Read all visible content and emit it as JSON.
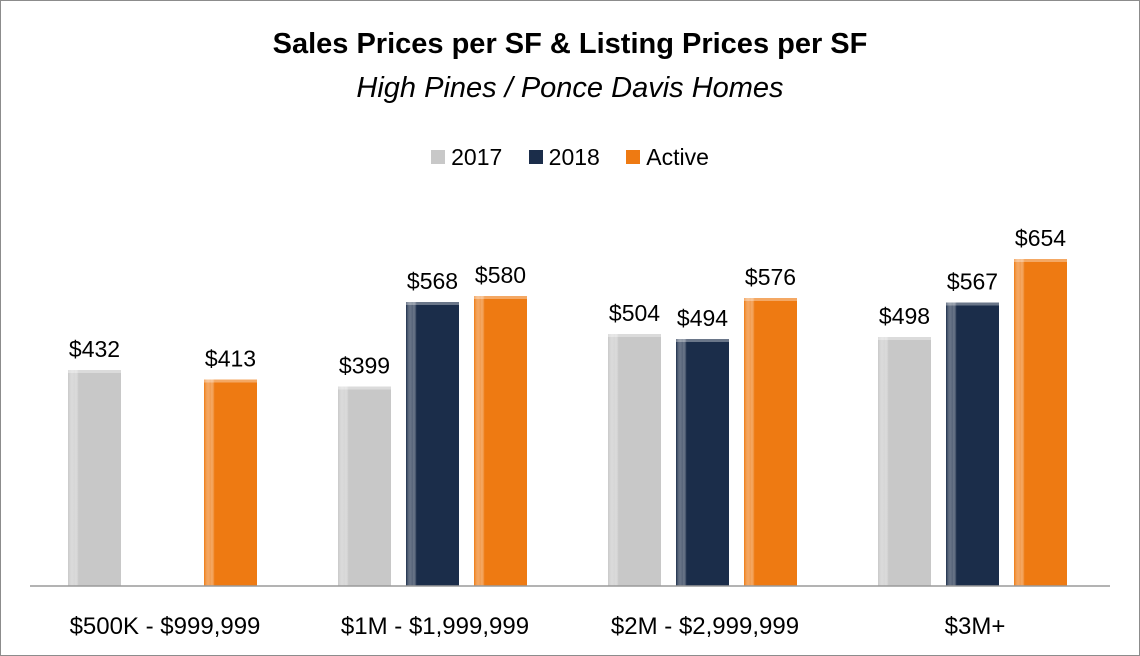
{
  "chart_data": {
    "type": "bar",
    "title": "Sales Prices per SF & Listing Prices per SF",
    "subtitle": "High Pines / Ponce Davis Homes",
    "categories": [
      "$500K - $999,999",
      "$1M - $1,999,999",
      "$2M - $2,999,999",
      "$3M+"
    ],
    "series": [
      {
        "name": "2017",
        "color": "#c8c8c8",
        "values": [
          432,
          399,
          504,
          498
        ],
        "labels": [
          "$432",
          "$399",
          "$504",
          "$498"
        ]
      },
      {
        "name": "2018",
        "color": "#1b2d4a",
        "values": [
          null,
          568,
          494,
          567
        ],
        "labels": [
          null,
          "$568",
          "$494",
          "$567"
        ]
      },
      {
        "name": "Active",
        "color": "#ee7a12",
        "values": [
          413,
          580,
          576,
          654
        ],
        "labels": [
          "$413",
          "$580",
          "$576",
          "$654"
        ]
      }
    ],
    "ylim": [
      0,
      750
    ],
    "grid": false,
    "legend_position": "top"
  }
}
